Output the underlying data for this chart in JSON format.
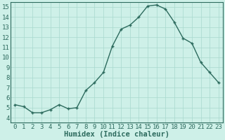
{
  "x": [
    0,
    1,
    2,
    3,
    4,
    5,
    6,
    7,
    8,
    9,
    10,
    11,
    12,
    13,
    14,
    15,
    16,
    17,
    18,
    19,
    20,
    21,
    22,
    23
  ],
  "y": [
    5.3,
    5.1,
    4.5,
    4.5,
    4.8,
    5.3,
    4.9,
    5.0,
    6.7,
    7.5,
    8.5,
    11.1,
    12.8,
    13.2,
    14.0,
    15.1,
    15.2,
    14.8,
    13.5,
    11.9,
    11.4,
    9.5,
    8.5,
    7.5
  ],
  "line_color": "#2d6b5e",
  "marker": "+",
  "marker_size": 3,
  "marker_linewidth": 1.0,
  "line_width": 1.0,
  "bg_color": "#cef0e8",
  "grid_color": "#a8d8ce",
  "xlabel": "Humidex (Indice chaleur)",
  "xlim": [
    -0.5,
    23.5
  ],
  "ylim": [
    3.5,
    15.5
  ],
  "yticks": [
    4,
    5,
    6,
    7,
    8,
    9,
    10,
    11,
    12,
    13,
    14,
    15
  ],
  "xticks": [
    0,
    1,
    2,
    3,
    4,
    5,
    6,
    7,
    8,
    9,
    10,
    11,
    12,
    13,
    14,
    15,
    16,
    17,
    18,
    19,
    20,
    21,
    22,
    23
  ],
  "tick_fontsize": 6.5,
  "xlabel_fontsize": 7.5
}
